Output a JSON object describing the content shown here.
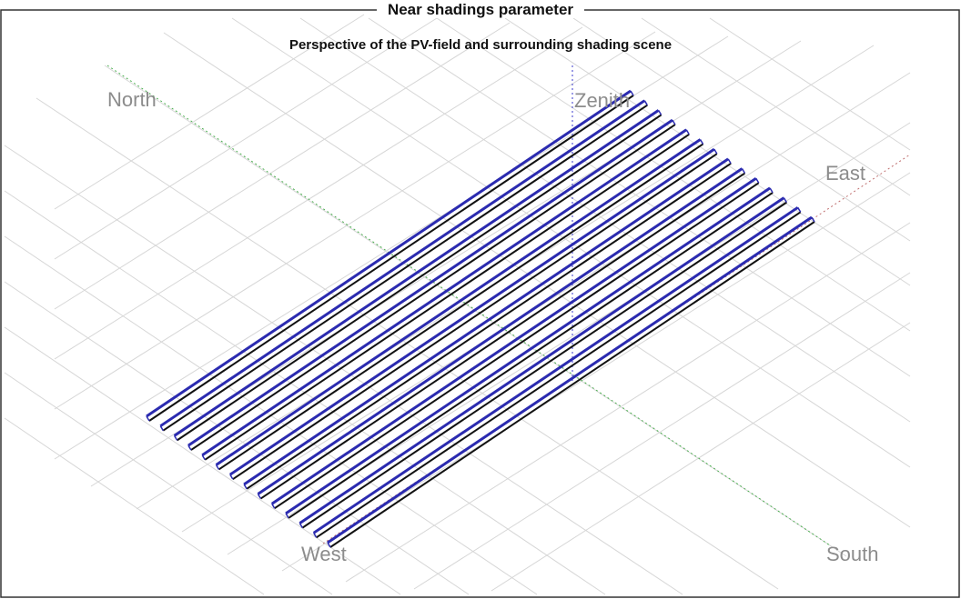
{
  "header": {
    "title": "Near shadings parameter",
    "subtitle": "Perspective of the PV-field and surrounding shading scene"
  },
  "compass": {
    "north": "North",
    "south": "South",
    "east": "East",
    "west": "West",
    "zenith": "Zenith"
  },
  "pv_field": {
    "row_count": 14,
    "row_edge_color": "#2b2bb0",
    "row_shadow_color": "#111111",
    "ground_grid_color": "#d6d6d6",
    "north_south_axis_color": "#4caf50",
    "east_west_axis_color": "#c07070",
    "zenith_axis_color": "#3a3acc"
  }
}
